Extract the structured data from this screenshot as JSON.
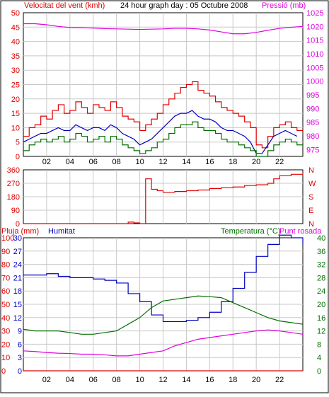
{
  "header": {
    "left_title": "Velocitat del vent (kmh)",
    "center_title": "24 hour graph day : 05 Octubre 2008",
    "right_title": "Pressió (mb)"
  },
  "colors": {
    "red": "#e00000",
    "green": "#007000",
    "blue": "#0000c0",
    "magenta": "#e000e0",
    "grid": "#c8c8c8",
    "frame": "#000000",
    "page_bg": "#ffffff",
    "outer_border": "#000000"
  },
  "chart_data": [
    {
      "type": "line",
      "panel": "wind",
      "x_ticks": [
        "02",
        "04",
        "06",
        "08",
        "10",
        "12",
        "14",
        "16",
        "18",
        "20",
        "22"
      ],
      "x_tick_hours": [
        2,
        4,
        6,
        8,
        10,
        12,
        14,
        16,
        18,
        20,
        22
      ],
      "x_range_hours": [
        0,
        24
      ],
      "left_axis": {
        "label": "Velocitat del vent (kmh)",
        "ticks": [
          0,
          5,
          10,
          15,
          20,
          25,
          30,
          35,
          40,
          45,
          50
        ],
        "ylim": [
          0,
          50
        ]
      },
      "right_axis": {
        "label": "Pressió (mb)",
        "ticks": [
          975,
          980,
          985,
          990,
          995,
          1000,
          1005,
          1010,
          1015,
          1020,
          1025
        ],
        "ylim": [
          972.5,
          1025
        ]
      },
      "grid": true,
      "series": [
        {
          "color_key": "red",
          "axis": "left",
          "style": "step",
          "x": [
            0,
            0.5,
            1,
            1.5,
            2,
            2.5,
            3,
            3.5,
            4,
            4.5,
            5,
            5.5,
            6,
            6.5,
            7,
            7.5,
            8,
            8.5,
            9,
            9.5,
            10,
            10.5,
            11,
            11.5,
            12,
            12.5,
            13,
            13.5,
            14,
            14.5,
            15,
            15.5,
            16,
            16.5,
            17,
            17.5,
            18,
            18.5,
            19,
            19.5,
            20,
            20.5,
            21,
            21.5,
            22,
            22.5,
            23,
            23.5
          ],
          "values": [
            7,
            10,
            11,
            14,
            13,
            16,
            18,
            15,
            16,
            19,
            17,
            15,
            18,
            17,
            16,
            19,
            17,
            14,
            13,
            12,
            9,
            11,
            13,
            15,
            18,
            20,
            22,
            24,
            25,
            26,
            23,
            22,
            21,
            19,
            17,
            16,
            15,
            14,
            12,
            10,
            4,
            3,
            7,
            10,
            11,
            12,
            10,
            9
          ]
        },
        {
          "color_key": "blue",
          "axis": "left",
          "style": "line",
          "x": [
            0,
            0.5,
            1,
            1.5,
            2,
            2.5,
            3,
            3.5,
            4,
            4.5,
            5,
            5.5,
            6,
            6.5,
            7,
            7.5,
            8,
            8.5,
            9,
            9.5,
            10,
            10.5,
            11,
            11.5,
            12,
            12.5,
            13,
            13.5,
            14,
            14.5,
            15,
            15.5,
            16,
            16.5,
            17,
            17.5,
            18,
            18.5,
            19,
            19.5,
            20,
            20.5,
            21,
            21.5,
            22,
            22.5,
            23,
            23.5
          ],
          "values": [
            5,
            6,
            7,
            8,
            8,
            9,
            10,
            9,
            9,
            11,
            10,
            9,
            10,
            10,
            9,
            11,
            10,
            8,
            7,
            6,
            4,
            5,
            6,
            8,
            10,
            12,
            14,
            15,
            15,
            16,
            14,
            13,
            13,
            12,
            10,
            9,
            9,
            8,
            7,
            5,
            1,
            1,
            4,
            7,
            8,
            9,
            8,
            7
          ]
        },
        {
          "color_key": "green",
          "axis": "left",
          "style": "step",
          "x": [
            0,
            0.5,
            1,
            1.5,
            2,
            2.5,
            3,
            3.5,
            4,
            4.5,
            5,
            5.5,
            6,
            6.5,
            7,
            7.5,
            8,
            8.5,
            9,
            9.5,
            10,
            10.5,
            11,
            11.5,
            12,
            12.5,
            13,
            13.5,
            14,
            14.5,
            15,
            15.5,
            16,
            16.5,
            17,
            17.5,
            18,
            18.5,
            19,
            19.5,
            20,
            20.5,
            21,
            21.5,
            22,
            22.5,
            23,
            23.5
          ],
          "values": [
            2,
            4,
            5,
            6,
            5,
            6,
            7,
            5,
            6,
            8,
            7,
            5,
            6,
            7,
            5,
            7,
            6,
            4,
            3,
            2,
            1,
            2,
            3,
            5,
            6,
            8,
            10,
            11,
            11,
            12,
            10,
            9,
            9,
            8,
            6,
            5,
            5,
            4,
            3,
            2,
            0,
            0,
            2,
            4,
            5,
            6,
            5,
            4
          ]
        },
        {
          "color_key": "magenta",
          "axis": "right",
          "style": "line",
          "x": [
            0,
            1,
            2,
            3,
            4,
            5,
            6,
            7,
            8,
            9,
            10,
            11,
            12,
            13,
            14,
            15,
            16,
            17,
            18,
            19,
            20,
            21,
            22,
            23,
            24
          ],
          "values": [
            1021,
            1021,
            1020.6,
            1020,
            1019.6,
            1019.5,
            1019.4,
            1019.2,
            1019.1,
            1019,
            1018.9,
            1019,
            1019.1,
            1019.3,
            1019.3,
            1019.1,
            1018.7,
            1018,
            1017.3,
            1017.3,
            1017.8,
            1018.6,
            1019.3,
            1019.7,
            1020
          ]
        }
      ]
    },
    {
      "type": "line",
      "panel": "direction",
      "x_range_hours": [
        0,
        24
      ],
      "left_axis": {
        "ticks": [
          0,
          90,
          180,
          270,
          360
        ],
        "ylim": [
          0,
          360
        ]
      },
      "right_axis": {
        "ticks": [
          "N",
          "E",
          "S",
          "W",
          "N"
        ]
      },
      "grid": true,
      "series": [
        {
          "color_key": "red",
          "axis": "left",
          "style": "step",
          "x": [
            0,
            2,
            4,
            6,
            7,
            8,
            9,
            9.5,
            10,
            10.5,
            11,
            11.5,
            12,
            13,
            14,
            15,
            16,
            17,
            18,
            19,
            20,
            21,
            21.5,
            22,
            23,
            24
          ],
          "values": [
            0,
            0,
            0,
            0,
            0,
            0,
            10,
            5,
            0,
            300,
            230,
            220,
            210,
            215,
            220,
            225,
            235,
            240,
            245,
            255,
            260,
            270,
            300,
            320,
            330,
            340
          ]
        }
      ]
    },
    {
      "type": "line",
      "panel": "temperature",
      "x_ticks": [
        "02",
        "04",
        "06",
        "08",
        "10",
        "12",
        "14",
        "16",
        "18",
        "20",
        "22"
      ],
      "x_tick_hours": [
        2,
        4,
        6,
        8,
        10,
        12,
        14,
        16,
        18,
        20,
        22
      ],
      "x_range_hours": [
        0,
        24
      ],
      "left_axis_outer": {
        "label": "Pluja (mm)",
        "ticks": [
          0,
          10,
          20,
          30,
          40,
          50,
          60,
          70,
          80,
          90,
          100
        ],
        "ylim": [
          0,
          100
        ]
      },
      "left_axis_inner": {
        "label": "Humitat",
        "ticks": [
          0,
          3,
          6,
          9,
          12,
          15,
          18,
          21,
          24,
          27,
          30
        ],
        "ylim": [
          0,
          30
        ]
      },
      "right_axis": {
        "label": "Temperatura (°C)",
        "ticks": [
          0,
          4,
          8,
          12,
          16,
          20,
          24,
          28,
          32,
          36,
          40
        ],
        "ylim": [
          0,
          40
        ]
      },
      "legend_extra": "Punt rosada",
      "grid": true,
      "series": [
        {
          "color_key": "blue",
          "axis": "left_outer",
          "style": "step",
          "x": [
            0,
            1,
            2,
            3,
            4,
            5,
            6,
            7,
            8,
            9,
            10,
            11,
            12,
            13,
            14,
            15,
            16,
            17,
            18,
            19,
            20,
            21,
            22,
            23,
            24
          ],
          "values": [
            72,
            72,
            73,
            71,
            70,
            70,
            69,
            68,
            66,
            58,
            52,
            42,
            37,
            37,
            38,
            40,
            44,
            52,
            62,
            74,
            86,
            95,
            102,
            100,
            95
          ]
        },
        {
          "color_key": "green",
          "axis": "right",
          "style": "line",
          "x": [
            0,
            1,
            2,
            3,
            4,
            5,
            6,
            7,
            8,
            9,
            10,
            11,
            12,
            13,
            14,
            15,
            16,
            17,
            18,
            19,
            20,
            21,
            22,
            23,
            24
          ],
          "values": [
            12.5,
            12,
            12,
            12,
            11.5,
            11,
            11,
            11.5,
            12,
            14,
            16,
            19,
            21,
            21.5,
            22,
            22.5,
            22.3,
            22,
            20.5,
            19,
            17.5,
            16,
            15,
            14.5,
            14
          ]
        },
        {
          "color_key": "magenta",
          "axis": "right",
          "style": "line",
          "x": [
            0,
            1,
            2,
            3,
            4,
            5,
            6,
            7,
            8,
            9,
            10,
            11,
            12,
            13,
            14,
            15,
            16,
            17,
            18,
            19,
            20,
            21,
            22,
            23,
            24
          ],
          "values": [
            6,
            5.8,
            5.5,
            5.3,
            5.2,
            5,
            5,
            4.8,
            4.5,
            4.5,
            5,
            5.5,
            6,
            7.5,
            8.5,
            9.5,
            10,
            10.5,
            11,
            11.5,
            12,
            12.3,
            12,
            11.5,
            11
          ]
        },
        {
          "color_key": "red",
          "axis": "left_outer",
          "style": "line",
          "x": [
            0,
            24
          ],
          "values": [
            0,
            0
          ]
        }
      ]
    }
  ]
}
